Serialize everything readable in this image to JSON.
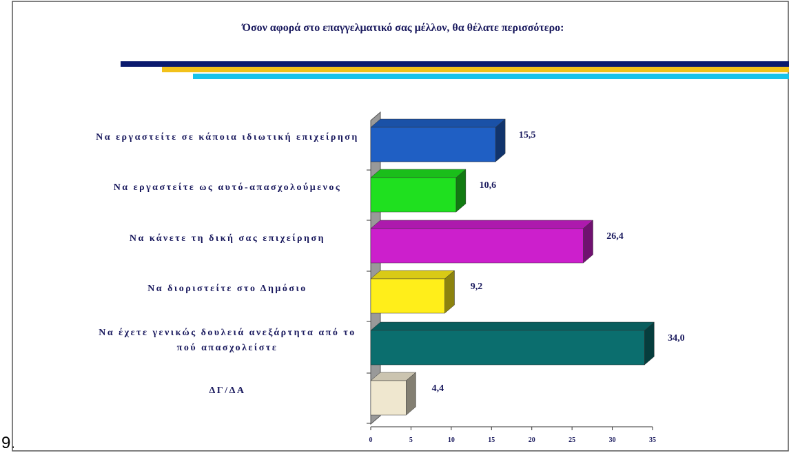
{
  "item_number": "9.",
  "chart_data": {
    "type": "bar",
    "orientation": "horizontal",
    "title": "Όσον αφορά στο επαγγελματικό σας μέλλον, θα θέλατε περισσότερο:",
    "categories": [
      "Να εργαστείτε σε κάποια ιδιωτική επιχείρηση",
      "Να εργαστείτε ως αυτό-απασχολούμενος",
      "Να κάνετε τη δική σας επιχείρηση",
      "Να διοριστείτε στο Δημόσιο",
      "Να έχετε γενικώς δουλειά ανεξάρτητα από το πού απασχολείστε",
      "ΔΓ/ΔΑ"
    ],
    "values": [
      15.5,
      10.6,
      26.4,
      9.2,
      34.0,
      4.4
    ],
    "value_labels": [
      "15,5",
      "10,6",
      "26,4",
      "9,2",
      "34,0",
      "4,4"
    ],
    "colors": [
      "#1f5fc4",
      "#1fe01f",
      "#cc1fcc",
      "#ffee1a",
      "#0b6e6e",
      "#efe7cf"
    ],
    "xlim": [
      0,
      35
    ],
    "xticks": [
      0,
      5,
      10,
      15,
      20,
      25,
      30,
      35
    ]
  }
}
